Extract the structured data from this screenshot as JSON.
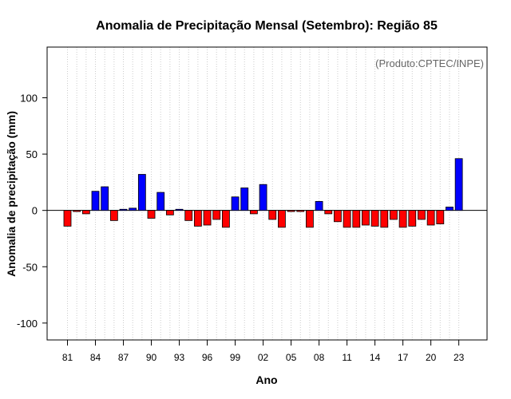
{
  "chart_data": {
    "type": "bar",
    "title": "Anomalia de Precipitação Mensal (Setembro): Região 85",
    "annotation": "(Produto:CPTEC/INPE)",
    "xlabel": "Ano",
    "ylabel": "Anomalia de precipitação (mm)",
    "ylim": [
      -115,
      145
    ],
    "yticks": [
      -100,
      -50,
      0,
      50,
      100
    ],
    "xtick_labels": [
      "81",
      "84",
      "87",
      "90",
      "93",
      "96",
      "99",
      "02",
      "05",
      "08",
      "11",
      "14",
      "17",
      "20",
      "23"
    ],
    "grid": "vertical dotted",
    "categories": [
      "1981",
      "1982",
      "1983",
      "1984",
      "1985",
      "1986",
      "1987",
      "1988",
      "1989",
      "1990",
      "1991",
      "1992",
      "1993",
      "1994",
      "1995",
      "1996",
      "1997",
      "1998",
      "1999",
      "2000",
      "2001",
      "2002",
      "2003",
      "2004",
      "2005",
      "2006",
      "2007",
      "2008",
      "2009",
      "2010",
      "2011",
      "2012",
      "2013",
      "2014",
      "2015",
      "2016",
      "2017",
      "2018",
      "2019",
      "2020",
      "2021",
      "2022",
      "2023"
    ],
    "values": [
      -14,
      -1,
      -3,
      17,
      21,
      -9,
      1,
      2,
      32,
      -7,
      16,
      -4,
      1,
      -9,
      -14,
      -13,
      -8,
      -15,
      12,
      20,
      -3,
      23,
      -8,
      -15,
      -1,
      -1,
      -15,
      8,
      -3,
      -10,
      -15,
      -15,
      -13,
      -14,
      -15,
      -8,
      -15,
      -14,
      -8,
      -13,
      -12,
      3,
      46
    ],
    "colors": {
      "positive": "#0000ff",
      "negative": "#ff0000"
    }
  }
}
